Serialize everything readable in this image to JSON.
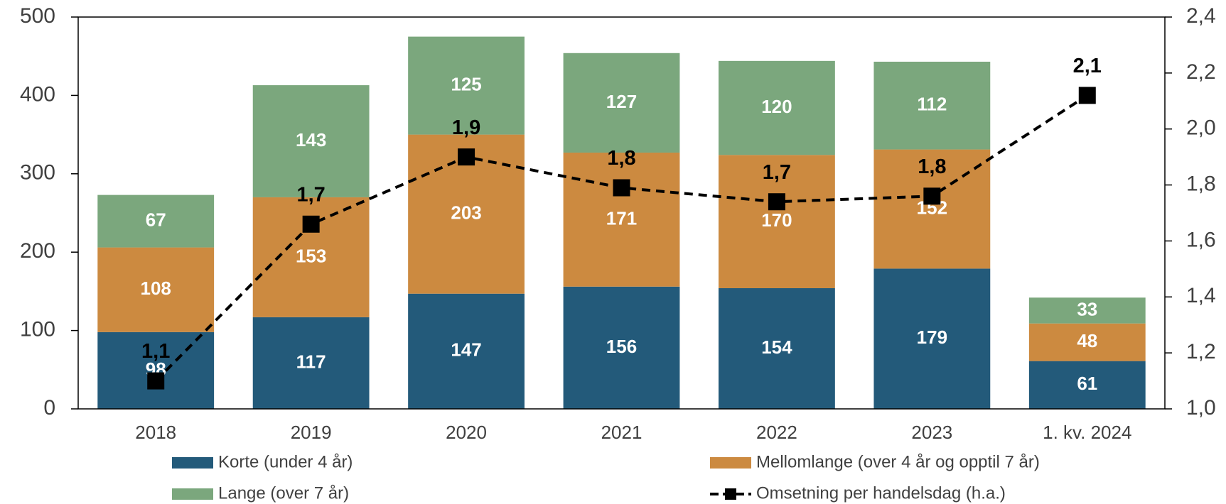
{
  "chart_data": {
    "type": "bar",
    "stacked": true,
    "categories": [
      "2018",
      "2019",
      "2020",
      "2021",
      "2022",
      "2023",
      "1. kv. 2024"
    ],
    "series": [
      {
        "name": "Korte (under 4 år)",
        "color": "#235a7a",
        "values": [
          98,
          117,
          147,
          156,
          154,
          179,
          61
        ]
      },
      {
        "name": "Mellomlange (over 4 år og opptil 7 år)",
        "color": "#cc8a40",
        "values": [
          108,
          153,
          203,
          171,
          170,
          152,
          48
        ]
      },
      {
        "name": "Lange (over 7 år)",
        "color": "#7ba77d",
        "values": [
          67,
          143,
          125,
          127,
          120,
          112,
          33
        ]
      },
      {
        "name": "Omsetning per handelsdag (h.a.)",
        "color": "#000000",
        "type": "line",
        "axis": "y2",
        "dashed": true,
        "values": [
          1.1,
          1.66,
          1.9,
          1.79,
          1.74,
          1.76,
          2.12
        ],
        "value_labels": [
          "1,1",
          "1,7",
          "1,9",
          "1,8",
          "1,7",
          "1,8",
          "2,1"
        ]
      }
    ],
    "ylim": [
      0,
      500
    ],
    "yticks": [
      0,
      100,
      200,
      300,
      400,
      500
    ],
    "y2lim": [
      1.0,
      2.4
    ],
    "y2ticks": [
      {
        "value": 1.0,
        "label": "1,0"
      },
      {
        "value": 1.2,
        "label": "1,2"
      },
      {
        "value": 1.4,
        "label": "1,4"
      },
      {
        "value": 1.6,
        "label": "1,6"
      },
      {
        "value": 1.8,
        "label": "1,8"
      },
      {
        "value": 2.0,
        "label": "2,0"
      },
      {
        "value": 2.2,
        "label": "2,2"
      },
      {
        "value": 2.4,
        "label": "2,4"
      }
    ],
    "legend": "bottom"
  }
}
